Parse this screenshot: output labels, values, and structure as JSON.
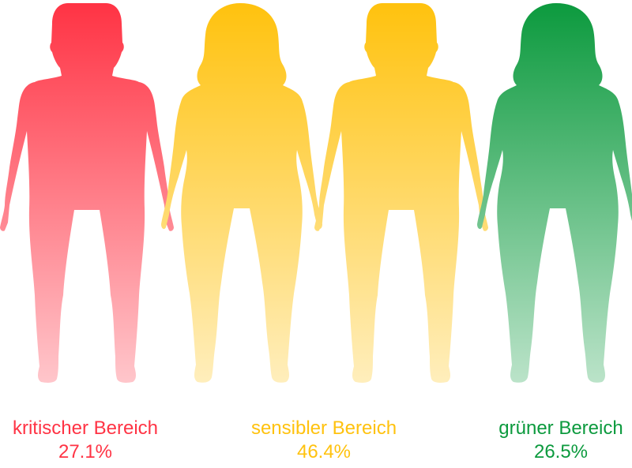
{
  "chart_data": {
    "type": "pictogram",
    "title": "",
    "categories": [
      "kritischer Bereich",
      "sensibler Bereich",
      "grüner Bereich"
    ],
    "values": [
      27.1,
      46.4,
      26.5
    ],
    "value_labels": [
      "27.1%",
      "46.4%",
      "26.5%"
    ],
    "unit": "%",
    "colors": [
      "#ff3344",
      "#ffc20e",
      "#0c9a3e"
    ],
    "figures": [
      {
        "icon": "male-silhouette-icon",
        "category_index": 0
      },
      {
        "icon": "female-silhouette-icon",
        "category_index": 1
      },
      {
        "icon": "male-silhouette-icon",
        "category_index": 1
      },
      {
        "icon": "female-silhouette-icon",
        "category_index": 2
      }
    ]
  }
}
